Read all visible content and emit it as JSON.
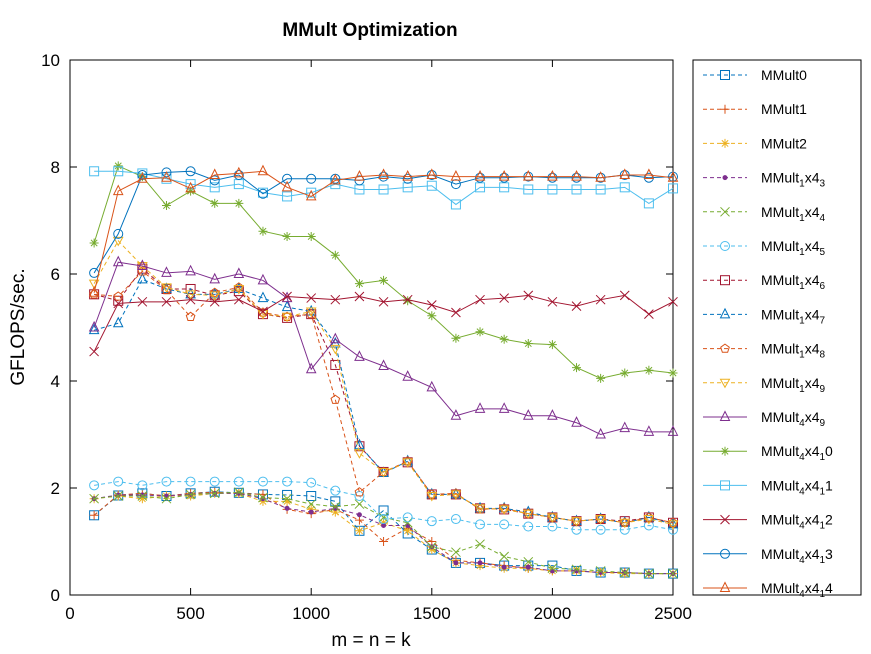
{
  "chart_data": {
    "type": "line",
    "title": "MMult Optimization",
    "xlabel": "m = n = k",
    "ylabel": "GFLOPS/sec.",
    "xlim": [
      0,
      2500
    ],
    "ylim": [
      0,
      10
    ],
    "xticks": [
      0,
      500,
      1000,
      1500,
      2000,
      2500
    ],
    "yticks": [
      0,
      2,
      4,
      6,
      8,
      10
    ],
    "grid": false,
    "legend_position": "right, outside plot",
    "x": [
      100,
      200,
      300,
      400,
      500,
      600,
      700,
      800,
      900,
      1000,
      1100,
      1200,
      1300,
      1400,
      1500,
      1600,
      1700,
      1800,
      1900,
      2000,
      2100,
      2200,
      2300,
      2400,
      2500
    ],
    "series": [
      {
        "name": "MMult0",
        "label_main": "MMult0",
        "label_sub": "",
        "label_tail": "",
        "color": "#0072bd",
        "marker": "square",
        "dash": true,
        "values": [
          1.49,
          1.86,
          1.9,
          1.85,
          1.9,
          1.93,
          1.91,
          1.88,
          1.87,
          1.85,
          1.75,
          1.2,
          1.58,
          1.15,
          0.85,
          0.6,
          0.6,
          0.55,
          0.55,
          0.55,
          0.45,
          0.42,
          0.42,
          0.4,
          0.4
        ]
      },
      {
        "name": "MMult1",
        "label_main": "MMult1",
        "label_sub": "",
        "label_tail": "",
        "color": "#d95319",
        "marker": "plus",
        "dash": true,
        "values": [
          1.49,
          1.87,
          1.9,
          1.85,
          1.9,
          1.92,
          1.9,
          1.88,
          1.6,
          1.52,
          1.6,
          1.4,
          1.0,
          1.25,
          1.0,
          0.65,
          0.6,
          0.55,
          0.5,
          0.45,
          0.45,
          0.42,
          0.42,
          0.4,
          0.4
        ]
      },
      {
        "name": "MMult2",
        "label_main": "MMult2",
        "label_sub": "",
        "label_tail": "",
        "color": "#edb120",
        "marker": "star",
        "dash": true,
        "values": [
          1.8,
          1.85,
          1.8,
          1.85,
          1.85,
          1.9,
          1.9,
          1.75,
          1.75,
          1.6,
          1.55,
          1.2,
          1.35,
          1.2,
          0.85,
          0.6,
          0.55,
          0.5,
          0.5,
          0.45,
          0.45,
          0.42,
          0.4,
          0.4,
          0.4
        ]
      },
      {
        "name": "MMult_1x4_3",
        "label_main": "MMult",
        "label_sub": "1",
        "label_tail": "x4",
        "label_sub2": "3",
        "color": "#7e2f8e",
        "marker": "dot",
        "dash": true,
        "values": [
          1.8,
          1.87,
          1.87,
          1.85,
          1.88,
          1.9,
          1.9,
          1.8,
          1.62,
          1.55,
          1.62,
          1.5,
          1.3,
          1.3,
          0.9,
          0.6,
          0.6,
          0.52,
          0.52,
          0.45,
          0.45,
          0.42,
          0.42,
          0.4,
          0.4
        ]
      },
      {
        "name": "MMult_1x4_4",
        "label_main": "MMult",
        "label_sub": "1",
        "label_tail": "x4",
        "label_sub2": "4",
        "color": "#77ac30",
        "marker": "cross",
        "dash": true,
        "values": [
          1.8,
          1.85,
          1.85,
          1.8,
          1.88,
          1.9,
          1.92,
          1.82,
          1.8,
          1.7,
          1.65,
          1.7,
          1.45,
          1.35,
          0.9,
          0.8,
          0.95,
          0.72,
          0.62,
          0.5,
          0.48,
          0.45,
          0.42,
          0.4,
          0.4
        ]
      },
      {
        "name": "MMult_1x4_5",
        "label_main": "MMult",
        "label_sub": "1",
        "label_tail": "x4",
        "label_sub2": "5",
        "color": "#4dbeee",
        "marker": "circle",
        "dash": true,
        "values": [
          2.05,
          2.12,
          2.05,
          2.12,
          2.12,
          2.12,
          2.12,
          2.12,
          2.12,
          2.1,
          1.95,
          1.85,
          1.42,
          1.45,
          1.38,
          1.42,
          1.32,
          1.32,
          1.28,
          1.28,
          1.22,
          1.22,
          1.22,
          1.3,
          1.22
        ]
      },
      {
        "name": "MMult_1x4_6",
        "label_main": "MMult",
        "label_sub": "1",
        "label_tail": "x4",
        "label_sub2": "6",
        "color": "#a2142f",
        "marker": "square",
        "dash": true,
        "values": [
          5.62,
          5.5,
          6.1,
          5.72,
          5.72,
          5.6,
          5.68,
          5.25,
          5.18,
          5.25,
          4.3,
          2.78,
          2.3,
          2.48,
          1.88,
          1.88,
          1.62,
          1.6,
          1.52,
          1.45,
          1.38,
          1.42,
          1.38,
          1.45,
          1.35
        ]
      },
      {
        "name": "MMult_1x4_7",
        "label_main": "MMult",
        "label_sub": "1",
        "label_tail": "x4",
        "label_sub2": "7",
        "color": "#0072bd",
        "marker": "triangle",
        "dash": true,
        "values": [
          4.95,
          5.08,
          5.9,
          5.72,
          5.62,
          5.62,
          5.72,
          5.55,
          5.38,
          5.3,
          4.7,
          2.8,
          2.28,
          2.5,
          1.88,
          1.88,
          1.62,
          1.62,
          1.55,
          1.45,
          1.38,
          1.42,
          1.35,
          1.45,
          1.32
        ]
      },
      {
        "name": "MMult_1x4_8",
        "label_main": "MMult",
        "label_sub": "1",
        "label_tail": "x4",
        "label_sub2": "8",
        "color": "#d95319",
        "marker": "pentagon",
        "dash": true,
        "values": [
          5.62,
          5.58,
          6.05,
          5.7,
          5.2,
          5.65,
          5.75,
          5.28,
          5.2,
          5.25,
          3.65,
          1.92,
          2.3,
          2.5,
          1.88,
          1.9,
          1.6,
          1.62,
          1.52,
          1.45,
          1.38,
          1.42,
          1.35,
          1.45,
          1.35
        ]
      },
      {
        "name": "MMult_1x4_9",
        "label_main": "MMult",
        "label_sub": "1",
        "label_tail": "x4",
        "label_sub2": "9",
        "color": "#edb120",
        "marker": "tridown",
        "dash": true,
        "values": [
          5.82,
          6.62,
          6.15,
          5.75,
          5.62,
          5.6,
          5.72,
          5.25,
          5.2,
          5.3,
          4.6,
          2.65,
          2.3,
          2.48,
          1.85,
          1.88,
          1.62,
          1.6,
          1.52,
          1.45,
          1.38,
          1.42,
          1.35,
          1.42,
          1.32
        ]
      },
      {
        "name": "MMult_4x4_9",
        "label_main": "MMult",
        "label_sub": "4",
        "label_tail": "x4",
        "label_sub2": "9",
        "color": "#7e2f8e",
        "marker": "triangle",
        "dash": false,
        "values": [
          5.0,
          6.22,
          6.15,
          6.02,
          6.05,
          5.9,
          6.0,
          5.88,
          5.55,
          4.22,
          4.78,
          4.45,
          4.28,
          4.08,
          3.88,
          3.35,
          3.48,
          3.48,
          3.35,
          3.35,
          3.22,
          3.0,
          3.12,
          3.05,
          3.05
        ]
      },
      {
        "name": "MMult_4x4_10",
        "label_main": "MMult",
        "label_sub": "4",
        "label_tail": "x4",
        "label_sub2": "1",
        "label_tail2": "0",
        "color": "#77ac30",
        "marker": "star",
        "dash": false,
        "values": [
          6.58,
          8.02,
          7.82,
          7.28,
          7.55,
          7.32,
          7.32,
          6.8,
          6.7,
          6.7,
          6.35,
          5.82,
          5.88,
          5.5,
          5.22,
          4.8,
          4.92,
          4.78,
          4.7,
          4.68,
          4.25,
          4.05,
          4.15,
          4.2,
          4.15
        ]
      },
      {
        "name": "MMult_4x4_11",
        "label_main": "MMult",
        "label_sub": "4",
        "label_tail": "x4",
        "label_sub2": "1",
        "label_tail2": "1",
        "color": "#4dbeee",
        "marker": "square",
        "dash": false,
        "values": [
          7.92,
          7.92,
          7.88,
          7.78,
          7.68,
          7.62,
          7.68,
          7.52,
          7.45,
          7.52,
          7.68,
          7.58,
          7.58,
          7.62,
          7.65,
          7.3,
          7.62,
          7.62,
          7.58,
          7.58,
          7.58,
          7.58,
          7.62,
          7.32,
          7.6
        ]
      },
      {
        "name": "MMult_4x4_12",
        "label_main": "MMult",
        "label_sub": "4",
        "label_tail": "x4",
        "label_sub2": "1",
        "label_tail2": "2",
        "color": "#a2142f",
        "marker": "cross",
        "dash": false,
        "values": [
          4.55,
          5.45,
          5.48,
          5.48,
          5.52,
          5.48,
          5.52,
          5.3,
          5.58,
          5.55,
          5.52,
          5.58,
          5.48,
          5.52,
          5.42,
          5.28,
          5.52,
          5.55,
          5.6,
          5.48,
          5.4,
          5.52,
          5.6,
          5.25,
          5.48
        ]
      },
      {
        "name": "MMult_4x4_13",
        "label_main": "MMult",
        "label_sub": "4",
        "label_tail": "x4",
        "label_sub2": "1",
        "label_tail2": "3",
        "color": "#0072bd",
        "marker": "circle",
        "dash": false,
        "values": [
          6.02,
          6.75,
          7.85,
          7.9,
          7.92,
          7.75,
          7.85,
          7.5,
          7.78,
          7.78,
          7.78,
          7.75,
          7.82,
          7.78,
          7.85,
          7.68,
          7.8,
          7.8,
          7.82,
          7.8,
          7.8,
          7.8,
          7.85,
          7.8,
          7.82
        ]
      },
      {
        "name": "MMult_4x4_14",
        "label_main": "MMult",
        "label_sub": "4",
        "label_tail": "x4",
        "label_sub2": "1",
        "label_tail2": "4",
        "color": "#d95319",
        "marker": "triangle",
        "dash": false,
        "values": [
          5.65,
          7.55,
          7.78,
          7.8,
          7.6,
          7.85,
          7.88,
          7.92,
          7.62,
          7.45,
          7.75,
          7.82,
          7.85,
          7.82,
          7.85,
          7.82,
          7.82,
          7.82,
          7.82,
          7.82,
          7.82,
          7.8,
          7.85,
          7.85,
          7.8
        ]
      }
    ]
  }
}
